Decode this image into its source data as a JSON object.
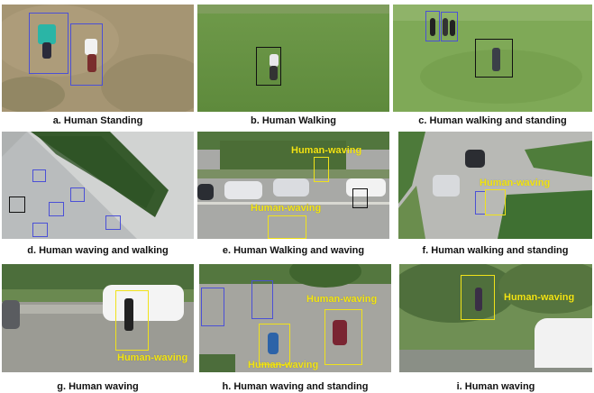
{
  "colors": {
    "bounding_box_blue": "#4b50d6",
    "bounding_box_black": "#111111",
    "bounding_box_yellow": "#f0e21a",
    "waving_label": "#f3e514"
  },
  "panels": [
    {
      "id": "a",
      "caption": "a. Human Standing"
    },
    {
      "id": "b",
      "caption": "b. Human Walking"
    },
    {
      "id": "c",
      "caption": "c. Human walking and standing"
    },
    {
      "id": "d",
      "caption": "d. Human waving and walking"
    },
    {
      "id": "e",
      "caption": "e. Human Walking and waving",
      "labels": [
        "Human-waving",
        "Human-waving"
      ]
    },
    {
      "id": "f",
      "caption": "f. Human walking and standing",
      "labels": [
        "Human-waving"
      ]
    },
    {
      "id": "g",
      "caption": "g. Human waving",
      "labels": [
        "Human-waving"
      ]
    },
    {
      "id": "h",
      "caption": "h. Human waving and standing",
      "labels": [
        "Human-waving",
        "Human-waving"
      ]
    },
    {
      "id": "i",
      "caption": "i. Human waving",
      "labels": [
        "Human-waving"
      ]
    }
  ]
}
